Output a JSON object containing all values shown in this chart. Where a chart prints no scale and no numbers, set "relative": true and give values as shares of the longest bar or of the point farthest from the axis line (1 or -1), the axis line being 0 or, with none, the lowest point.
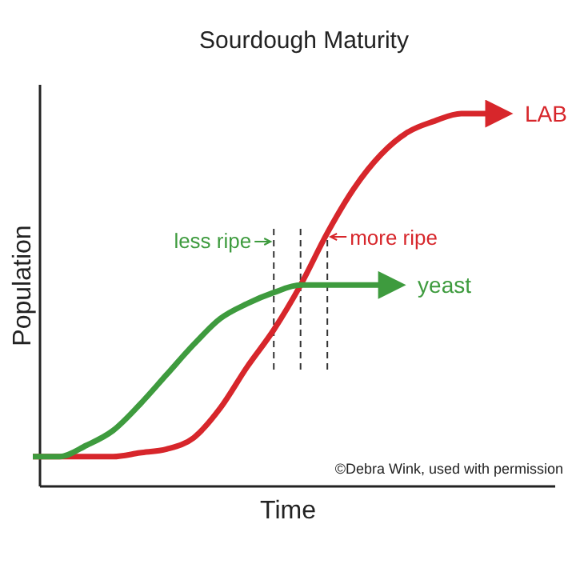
{
  "chart_data": {
    "type": "line",
    "title": "Sourdough Maturity",
    "xlabel": "Time",
    "ylabel": "Population",
    "relative": true,
    "legend": "right",
    "categories": [
      null,
      null,
      null,
      null,
      null,
      null,
      null,
      null,
      null,
      null,
      null,
      null,
      null,
      null,
      null,
      null,
      null,
      null
    ],
    "series": [
      {
        "name": "LAB",
        "color": "#d7262b",
        "values": [
          0.08,
          0.08,
          0.08,
          0.08,
          0.09,
          0.1,
          0.13,
          0.21,
          0.32,
          0.42,
          0.54,
          0.68,
          0.8,
          0.89,
          0.95,
          0.98,
          1.0,
          1.0
        ]
      },
      {
        "name": "yeast",
        "color": "#3e9b3e",
        "values": [
          0.08,
          0.08,
          0.11,
          0.15,
          0.22,
          0.3,
          0.38,
          0.45,
          0.49,
          0.52,
          0.54,
          0.54,
          0.54,
          0.54,
          null,
          null,
          null,
          null
        ]
      }
    ],
    "annotations": [
      "less ripe",
      "more ripe",
      "©Debra Wink, used with permission"
    ]
  }
}
